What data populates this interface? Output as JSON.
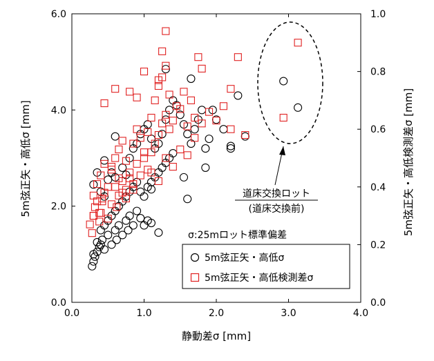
{
  "chart_data": {
    "type": "scatter",
    "xlabel": "静動差σ [mm]",
    "ylabel_left": "5m弦正矢・高低σ [mm]",
    "ylabel_right": "5m弦正矢・高低検測差σ [mm]",
    "xlim": [
      0,
      4
    ],
    "ylim_left": [
      0,
      6
    ],
    "ylim_right": [
      0,
      1
    ],
    "x_ticks": [
      "0.0",
      "1.0",
      "2.0",
      "3.0",
      "4.0"
    ],
    "y_left_ticks": [
      "0.0",
      "2.0",
      "4.0",
      "6.0"
    ],
    "y_right_ticks": [
      "0.0",
      "0.2",
      "0.4",
      "0.6",
      "0.8",
      "1.0"
    ],
    "grid": false,
    "legend_position": "bottom-right",
    "series": [
      {
        "name": "5m弦正矢・高低σ",
        "axis": "left",
        "marker": "circle",
        "color": "#000000",
        "points": [
          [
            0.28,
            0.75
          ],
          [
            0.3,
            0.85
          ],
          [
            0.32,
            0.95
          ],
          [
            0.35,
            1.05
          ],
          [
            0.38,
            1.15
          ],
          [
            0.4,
            1.2
          ],
          [
            0.42,
            1.3
          ],
          [
            0.45,
            1.1
          ],
          [
            0.5,
            1.4
          ],
          [
            0.55,
            1.2
          ],
          [
            0.6,
            1.5
          ],
          [
            0.62,
            1.3
          ],
          [
            0.65,
            1.6
          ],
          [
            0.7,
            1.4
          ],
          [
            0.75,
            1.7
          ],
          [
            0.78,
            1.5
          ],
          [
            0.8,
            1.8
          ],
          [
            0.85,
            1.6
          ],
          [
            0.9,
            1.9
          ],
          [
            0.95,
            1.75
          ],
          [
            1.0,
            1.6
          ],
          [
            1.05,
            1.7
          ],
          [
            1.1,
            1.65
          ],
          [
            1.2,
            1.45
          ],
          [
            0.3,
            1.0
          ],
          [
            0.35,
            1.25
          ],
          [
            0.4,
            1.5
          ],
          [
            0.45,
            1.6
          ],
          [
            0.5,
            1.7
          ],
          [
            0.55,
            1.8
          ],
          [
            0.6,
            1.9
          ],
          [
            0.65,
            2.0
          ],
          [
            0.7,
            2.1
          ],
          [
            0.75,
            2.2
          ],
          [
            0.8,
            2.3
          ],
          [
            0.85,
            2.4
          ],
          [
            0.9,
            2.5
          ],
          [
            0.95,
            2.3
          ],
          [
            1.0,
            2.2
          ],
          [
            1.05,
            2.4
          ],
          [
            1.1,
            2.5
          ],
          [
            1.15,
            2.6
          ],
          [
            1.2,
            2.7
          ],
          [
            1.25,
            2.8
          ],
          [
            1.3,
            2.9
          ],
          [
            1.35,
            3.0
          ],
          [
            1.4,
            3.1
          ],
          [
            0.3,
            2.45
          ],
          [
            0.4,
            2.3
          ],
          [
            0.45,
            2.2
          ],
          [
            0.5,
            2.55
          ],
          [
            0.55,
            2.7
          ],
          [
            0.6,
            2.6
          ],
          [
            0.7,
            2.8
          ],
          [
            0.75,
            2.65
          ],
          [
            0.8,
            3.0
          ],
          [
            0.85,
            3.2
          ],
          [
            0.9,
            3.3
          ],
          [
            0.95,
            3.5
          ],
          [
            1.0,
            3.6
          ],
          [
            1.05,
            3.7
          ],
          [
            1.1,
            3.4
          ],
          [
            1.15,
            3.2
          ],
          [
            1.2,
            3.3
          ],
          [
            1.25,
            3.5
          ],
          [
            1.3,
            3.8
          ],
          [
            1.35,
            4.0
          ],
          [
            1.4,
            4.2
          ],
          [
            1.45,
            4.1
          ],
          [
            1.5,
            3.9
          ],
          [
            1.55,
            3.7
          ],
          [
            1.6,
            3.5
          ],
          [
            1.65,
            3.3
          ],
          [
            1.7,
            3.6
          ],
          [
            1.75,
            3.8
          ],
          [
            1.8,
            4.0
          ],
          [
            1.85,
            3.2
          ],
          [
            1.9,
            3.4
          ],
          [
            1.95,
            4.0
          ],
          [
            2.0,
            3.8
          ],
          [
            2.1,
            3.6
          ],
          [
            2.2,
            3.2
          ],
          [
            2.3,
            4.3
          ],
          [
            2.4,
            3.45
          ],
          [
            1.3,
            4.85
          ],
          [
            1.65,
            4.65
          ],
          [
            1.55,
            2.6
          ],
          [
            1.6,
            2.15
          ],
          [
            1.85,
            2.8
          ],
          [
            2.2,
            3.25
          ],
          [
            1.1,
            2.35
          ],
          [
            0.45,
            2.95
          ],
          [
            0.35,
            2.7
          ],
          [
            0.6,
            3.45
          ],
          [
            2.93,
            4.6
          ],
          [
            3.13,
            4.05
          ]
        ]
      },
      {
        "name": "5m弦正矢・高低検測差σ",
        "axis": "right",
        "marker": "square",
        "color": "#e02020",
        "points": [
          [
            0.25,
            0.27
          ],
          [
            0.28,
            0.24
          ],
          [
            0.3,
            0.3
          ],
          [
            0.32,
            0.33
          ],
          [
            0.35,
            0.35
          ],
          [
            0.38,
            0.28
          ],
          [
            0.4,
            0.31
          ],
          [
            0.42,
            0.36
          ],
          [
            0.45,
            0.38
          ],
          [
            0.5,
            0.29
          ],
          [
            0.55,
            0.34
          ],
          [
            0.6,
            0.4
          ],
          [
            0.62,
            0.33
          ],
          [
            0.65,
            0.37
          ],
          [
            0.7,
            0.42
          ],
          [
            0.75,
            0.39
          ],
          [
            0.8,
            0.45
          ],
          [
            0.85,
            0.41
          ],
          [
            0.9,
            0.48
          ],
          [
            0.95,
            0.44
          ],
          [
            1.0,
            0.5
          ],
          [
            1.05,
            0.46
          ],
          [
            1.1,
            0.52
          ],
          [
            1.15,
            0.55
          ],
          [
            1.2,
            0.58
          ],
          [
            1.25,
            0.62
          ],
          [
            1.3,
            0.65
          ],
          [
            1.35,
            0.6
          ],
          [
            1.4,
            0.63
          ],
          [
            1.5,
            0.67
          ],
          [
            1.6,
            0.61
          ],
          [
            1.7,
            0.64
          ],
          [
            1.8,
            0.62
          ],
          [
            1.9,
            0.66
          ],
          [
            2.0,
            0.63
          ],
          [
            2.2,
            0.6
          ],
          [
            2.4,
            0.58
          ],
          [
            0.3,
            0.37
          ],
          [
            0.35,
            0.41
          ],
          [
            0.4,
            0.44
          ],
          [
            0.45,
            0.48
          ],
          [
            0.5,
            0.4
          ],
          [
            0.55,
            0.46
          ],
          [
            0.6,
            0.5
          ],
          [
            0.65,
            0.53
          ],
          [
            0.7,
            0.56
          ],
          [
            0.75,
            0.49
          ],
          [
            0.8,
            0.43
          ],
          [
            0.85,
            0.55
          ],
          [
            0.9,
            0.6
          ],
          [
            0.95,
            0.57
          ],
          [
            1.0,
            0.52
          ],
          [
            1.05,
            0.59
          ],
          [
            1.1,
            0.64
          ],
          [
            1.15,
            0.7
          ],
          [
            1.2,
            0.75
          ],
          [
            1.25,
            0.78
          ],
          [
            1.3,
            0.82
          ],
          [
            1.35,
            0.72
          ],
          [
            1.45,
            0.68
          ],
          [
            1.55,
            0.73
          ],
          [
            1.65,
            0.7
          ],
          [
            0.45,
            0.69
          ],
          [
            0.6,
            0.74
          ],
          [
            0.8,
            0.73
          ],
          [
            0.9,
            0.71
          ],
          [
            1.0,
            0.8
          ],
          [
            1.2,
            0.77
          ],
          [
            1.25,
            0.87
          ],
          [
            1.3,
            0.94
          ],
          [
            1.75,
            0.85
          ],
          [
            1.8,
            0.81
          ],
          [
            2.1,
            0.68
          ],
          [
            2.2,
            0.74
          ],
          [
            2.3,
            0.85
          ],
          [
            0.55,
            0.47
          ],
          [
            0.65,
            0.43
          ],
          [
            0.7,
            0.38
          ],
          [
            0.75,
            0.36
          ],
          [
            0.85,
            0.39
          ],
          [
            1.1,
            0.45
          ],
          [
            1.2,
            0.42
          ],
          [
            1.3,
            0.5
          ],
          [
            1.4,
            0.47
          ],
          [
            1.5,
            0.53
          ],
          [
            1.6,
            0.51
          ],
          [
            1.7,
            0.57
          ],
          [
            0.3,
            0.3
          ],
          [
            0.38,
            0.31
          ],
          [
            0.42,
            0.35
          ],
          [
            2.93,
            0.64
          ],
          [
            3.13,
            0.9
          ]
        ]
      }
    ],
    "legend": [
      "5m弦正矢・高低σ",
      "5m弦正矢・高低検測差σ"
    ],
    "annotations": {
      "note": "σ:25mロット標準偏差",
      "callout_line1": "道床交換ロット",
      "callout_line2": "(道床交換前)"
    }
  }
}
